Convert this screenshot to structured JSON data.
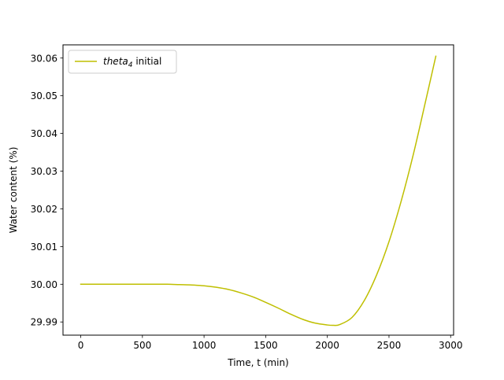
{
  "chart_data": {
    "type": "line",
    "title": "",
    "xlabel": "Time, t (min)",
    "ylabel": "Water content (%)",
    "xlim": [
      -144,
      3024
    ],
    "ylim": [
      29.9865,
      30.0635
    ],
    "xticks": [
      0,
      500,
      1000,
      1500,
      2000,
      2500,
      3000
    ],
    "xtick_labels": [
      "0",
      "500",
      "1000",
      "1500",
      "2000",
      "2500",
      "3000"
    ],
    "yticks": [
      29.99,
      30.0,
      30.01,
      30.02,
      30.03,
      30.04,
      30.05,
      30.06
    ],
    "ytick_labels": [
      "29.99",
      "30.00",
      "30.01",
      "30.02",
      "30.03",
      "30.04",
      "30.05",
      "30.06"
    ],
    "grid": false,
    "legend_position": "upper-left",
    "series": [
      {
        "name_base": "theta",
        "name_sub": "4",
        "name_suffix": " initial",
        "color": "#bfbf00",
        "x": [
          0,
          100,
          200,
          300,
          400,
          500,
          600,
          700,
          800,
          900,
          1000,
          1100,
          1200,
          1300,
          1400,
          1500,
          1600,
          1700,
          1800,
          1900,
          2000,
          2050,
          2100,
          2200,
          2300,
          2400,
          2500,
          2600,
          2700,
          2800,
          2880
        ],
        "y": [
          30.0,
          30.0,
          30.0,
          30.0,
          30.0,
          30.0,
          30.0,
          30.0,
          29.9999,
          29.9998,
          29.9996,
          29.9992,
          29.9986,
          29.9977,
          29.9966,
          29.9952,
          29.9937,
          29.9921,
          29.9907,
          29.9897,
          29.9892,
          29.9891,
          29.9893,
          29.9912,
          29.9957,
          30.0025,
          30.0113,
          30.0222,
          30.0348,
          30.049,
          30.0605
        ]
      }
    ]
  }
}
